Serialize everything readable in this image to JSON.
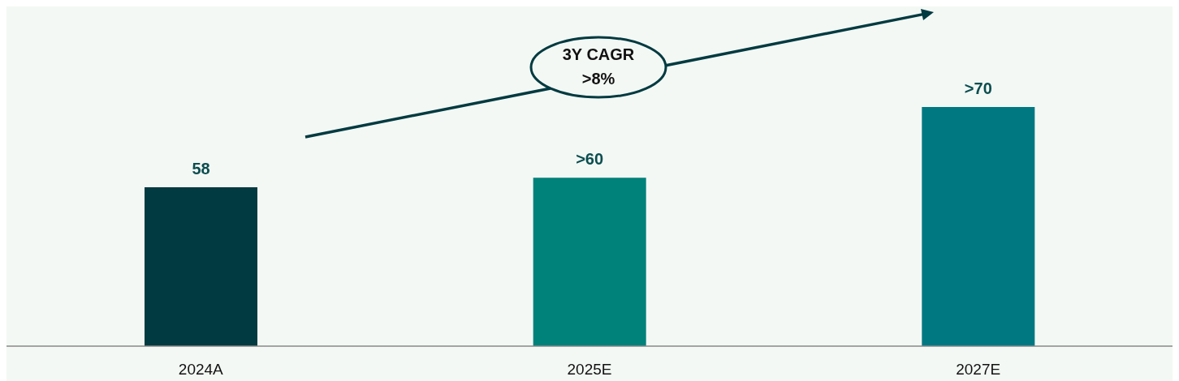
{
  "chart_data": {
    "type": "bar",
    "categories": [
      "2024A",
      "2025E",
      "2027E"
    ],
    "values": [
      58,
      61.5,
      87.3
    ],
    "colors": [
      "#013a40",
      "#00817a",
      "#007882"
    ],
    "value_labels": [
      "58",
      ">60",
      ">70"
    ],
    "ylim": [
      0,
      124
    ],
    "annotations": [
      "3Y CAGR\n>8%"
    ],
    "grid": false
  }
}
